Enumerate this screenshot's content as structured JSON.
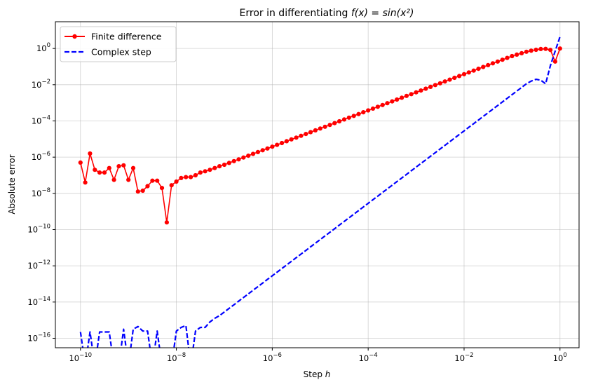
{
  "chart_data": {
    "type": "line",
    "title_plain": "Error in differentiating ",
    "title_math": "f(x) = sin(x²)",
    "xlabel_plain": "Step ",
    "xlabel_math": "h",
    "ylabel": "Absolute error",
    "x_scale": "log",
    "y_scale": "log",
    "xlim": [
      3e-11,
      2.5
    ],
    "ylim": [
      3e-17,
      30.0
    ],
    "grid": true,
    "legend_position": "upper-left",
    "x_ticks": [
      {
        "value": 1e-10,
        "mantissa": "10",
        "exp": "−10"
      },
      {
        "value": 1e-08,
        "mantissa": "10",
        "exp": "−8"
      },
      {
        "value": 1e-06,
        "mantissa": "10",
        "exp": "−6"
      },
      {
        "value": 0.0001,
        "mantissa": "10",
        "exp": "−4"
      },
      {
        "value": 0.01,
        "mantissa": "10",
        "exp": "−2"
      },
      {
        "value": 1,
        "mantissa": "10",
        "exp": "0"
      }
    ],
    "y_ticks": [
      {
        "value": 1e-16,
        "mantissa": "10",
        "exp": "−16"
      },
      {
        "value": 1e-14,
        "mantissa": "10",
        "exp": "−14"
      },
      {
        "value": 1e-12,
        "mantissa": "10",
        "exp": "−12"
      },
      {
        "value": 1e-10,
        "mantissa": "10",
        "exp": "−10"
      },
      {
        "value": 1e-08,
        "mantissa": "10",
        "exp": "−8"
      },
      {
        "value": 1e-06,
        "mantissa": "10",
        "exp": "−6"
      },
      {
        "value": 0.0001,
        "mantissa": "10",
        "exp": "−4"
      },
      {
        "value": 0.01,
        "mantissa": "10",
        "exp": "−2"
      },
      {
        "value": 1,
        "mantissa": "10",
        "exp": "0"
      }
    ],
    "series": [
      {
        "name": "Finite difference",
        "color": "#ff0000",
        "line_style": "solid",
        "marker": "circle",
        "x_log10": [
          -10.0,
          -9.9,
          -9.8,
          -9.7,
          -9.6,
          -9.5,
          -9.4,
          -9.3,
          -9.2,
          -9.1,
          -9.0,
          -8.9,
          -8.8,
          -8.7,
          -8.6,
          -8.5,
          -8.4,
          -8.3,
          -8.2,
          -8.1,
          -8.0,
          -7.9,
          -7.8,
          -7.7,
          -7.6,
          -7.5,
          -7.4,
          -7.3,
          -7.2,
          -7.1,
          -7.0,
          -6.9,
          -6.8,
          -6.7,
          -6.6,
          -6.5,
          -6.4,
          -6.3,
          -6.2,
          -6.1,
          -6.0,
          -5.9,
          -5.8,
          -5.7,
          -5.6,
          -5.5,
          -5.4,
          -5.3,
          -5.2,
          -5.1,
          -5.0,
          -4.9,
          -4.8,
          -4.7,
          -4.6,
          -4.5,
          -4.4,
          -4.3,
          -4.2,
          -4.1,
          -4.0,
          -3.9,
          -3.8,
          -3.7,
          -3.6,
          -3.5,
          -3.4,
          -3.3,
          -3.2,
          -3.1,
          -3.0,
          -2.9,
          -2.8,
          -2.7,
          -2.6,
          -2.5,
          -2.4,
          -2.3,
          -2.2,
          -2.1,
          -2.0,
          -1.9,
          -1.8,
          -1.7,
          -1.6,
          -1.5,
          -1.4,
          -1.3,
          -1.2,
          -1.1,
          -1.0,
          -0.9,
          -0.8,
          -0.7,
          -0.6,
          -0.5,
          -0.4,
          -0.3,
          -0.2,
          -0.1,
          0.0
        ],
        "y_log10": [
          -6.3,
          -7.4,
          -5.8,
          -6.7,
          -6.85,
          -6.85,
          -6.6,
          -7.25,
          -6.5,
          -6.45,
          -7.25,
          -6.6,
          -7.9,
          -7.85,
          -7.6,
          -7.3,
          -7.3,
          -7.7,
          -9.6,
          -7.55,
          -7.35,
          -7.15,
          -7.1,
          -7.1,
          -7.0,
          -6.85,
          -6.78,
          -6.7,
          -6.6,
          -6.5,
          -6.42,
          -6.32,
          -6.22,
          -6.12,
          -6.02,
          -5.92,
          -5.82,
          -5.72,
          -5.62,
          -5.52,
          -5.42,
          -5.32,
          -5.22,
          -5.12,
          -5.02,
          -4.92,
          -4.82,
          -4.72,
          -4.62,
          -4.52,
          -4.42,
          -4.32,
          -4.22,
          -4.12,
          -4.02,
          -3.92,
          -3.82,
          -3.72,
          -3.62,
          -3.52,
          -3.42,
          -3.32,
          -3.22,
          -3.12,
          -3.02,
          -2.92,
          -2.82,
          -2.72,
          -2.62,
          -2.52,
          -2.42,
          -2.32,
          -2.22,
          -2.12,
          -2.02,
          -1.92,
          -1.82,
          -1.72,
          -1.62,
          -1.52,
          -1.42,
          -1.32,
          -1.22,
          -1.12,
          -1.02,
          -0.92,
          -0.82,
          -0.72,
          -0.62,
          -0.52,
          -0.42,
          -0.34,
          -0.26,
          -0.18,
          -0.12,
          -0.07,
          -0.03,
          -0.02,
          -0.08,
          -0.72,
          0.0
        ]
      },
      {
        "name": "Complex step",
        "color": "#0000ff",
        "line_style": "dashed",
        "marker": "none",
        "x_log10": [
          -10.0,
          -9.9,
          -9.8,
          -9.7,
          -9.6,
          -9.5,
          -9.4,
          -9.3,
          -9.2,
          -9.1,
          -9.0,
          -8.9,
          -8.8,
          -8.7,
          -8.6,
          -8.5,
          -8.4,
          -8.3,
          -8.2,
          -8.1,
          -8.0,
          -7.9,
          -7.8,
          -7.7,
          -7.6,
          -7.5,
          -7.4,
          -7.3,
          -7.2,
          -7.1,
          -7.0,
          -6.9,
          -6.8,
          -6.7,
          -6.6,
          -6.5,
          -6.4,
          -6.3,
          -6.2,
          -6.1,
          -6.0,
          -5.9,
          -5.8,
          -5.7,
          -5.6,
          -5.5,
          -5.4,
          -5.3,
          -5.2,
          -5.1,
          -5.0,
          -4.9,
          -4.8,
          -4.7,
          -4.6,
          -4.5,
          -4.4,
          -4.3,
          -4.2,
          -4.1,
          -4.0,
          -3.9,
          -3.8,
          -3.7,
          -3.6,
          -3.5,
          -3.4,
          -3.3,
          -3.2,
          -3.1,
          -3.0,
          -2.9,
          -2.8,
          -2.7,
          -2.6,
          -2.5,
          -2.4,
          -2.3,
          -2.2,
          -2.1,
          -2.0,
          -1.9,
          -1.8,
          -1.7,
          -1.6,
          -1.5,
          -1.4,
          -1.3,
          -1.2,
          -1.1,
          -1.0,
          -0.9,
          -0.8,
          -0.7,
          -0.6,
          -0.5,
          -0.4,
          -0.3,
          -0.2,
          -0.1,
          0.0
        ],
        "y_log10": [
          -15.65,
          -17.5,
          -15.65,
          -17.5,
          -15.65,
          -15.65,
          -15.65,
          -17.5,
          -17.5,
          -15.5,
          -17.5,
          -15.5,
          -15.35,
          -15.6,
          -15.6,
          -17.5,
          -15.6,
          -17.5,
          -17.5,
          -17.5,
          -15.6,
          -15.4,
          -15.3,
          -17.5,
          -15.6,
          -15.4,
          -15.4,
          -15.1,
          -14.9,
          -14.75,
          -14.55,
          -14.35,
          -14.15,
          -13.95,
          -13.75,
          -13.55,
          -13.35,
          -13.15,
          -12.95,
          -12.75,
          -12.55,
          -12.35,
          -12.15,
          -11.95,
          -11.75,
          -11.55,
          -11.35,
          -11.15,
          -10.95,
          -10.75,
          -10.55,
          -10.35,
          -10.15,
          -9.95,
          -9.75,
          -9.55,
          -9.35,
          -9.15,
          -8.95,
          -8.75,
          -8.55,
          -8.35,
          -8.15,
          -7.95,
          -7.75,
          -7.55,
          -7.35,
          -7.15,
          -6.95,
          -6.75,
          -6.55,
          -6.35,
          -6.15,
          -5.95,
          -5.75,
          -5.55,
          -5.35,
          -5.15,
          -4.95,
          -4.75,
          -4.55,
          -4.35,
          -4.15,
          -3.95,
          -3.75,
          -3.55,
          -3.35,
          -3.15,
          -2.95,
          -2.75,
          -2.55,
          -2.35,
          -2.15,
          -1.95,
          -1.8,
          -1.7,
          -1.75,
          -1.95,
          -0.95,
          -0.15,
          0.65
        ]
      }
    ]
  }
}
